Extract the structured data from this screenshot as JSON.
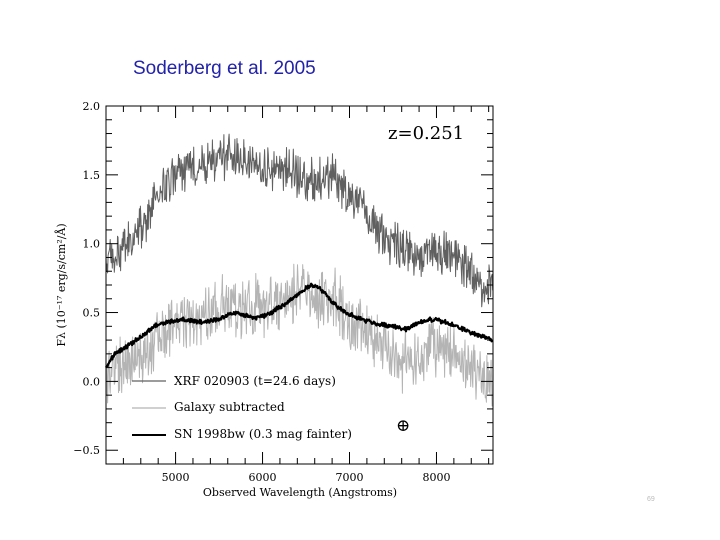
{
  "page": {
    "heading": "Soderberg et al. 2005",
    "slide_number": "69"
  },
  "colors": {
    "xrf": "#606060",
    "galaxy": "#b4b4b4",
    "sn": "#000000",
    "heading": "#2222aa"
  },
  "chart_data": {
    "type": "line",
    "title": "",
    "annotation": "z=0.251",
    "earth_symbol": "⊕",
    "xlabel": "Observed Wavelength (Angstroms)",
    "ylabel": "Fλ (10⁻¹⁷ erg/s/cm²/Å)",
    "xlim": [
      4200,
      8650
    ],
    "ylim": [
      -0.6,
      2.0
    ],
    "xticks": [
      5000,
      6000,
      7000,
      8000
    ],
    "xtick_labels": [
      "5000",
      "6000",
      "7000",
      "8000"
    ],
    "yticks": [
      -0.5,
      0.0,
      0.5,
      1.0,
      1.5,
      2.0
    ],
    "ytick_labels": [
      "−0.5",
      "0.0",
      "0.5",
      "1.0",
      "1.5",
      "2.0"
    ],
    "legend": [
      "XRF 020903 (t=24.6 days)",
      "Galaxy subtracted",
      "SN 1998bw (0.3 mag fainter)"
    ],
    "legend_position": "bottom-left",
    "series": [
      {
        "name": "XRF 020903 (t=24.6 days)",
        "color": "#606060",
        "noise": 0.13,
        "x": [
          4200,
          4400,
          4600,
          4800,
          5000,
          5200,
          5400,
          5600,
          5800,
          6000,
          6200,
          6400,
          6600,
          6800,
          7000,
          7200,
          7400,
          7600,
          7800,
          8000,
          8200,
          8400,
          8650
        ],
        "y": [
          0.85,
          0.95,
          1.1,
          1.35,
          1.5,
          1.55,
          1.6,
          1.65,
          1.6,
          1.55,
          1.55,
          1.5,
          1.45,
          1.5,
          1.35,
          1.2,
          1.05,
          0.95,
          0.9,
          0.95,
          0.9,
          0.8,
          0.65
        ]
      },
      {
        "name": "Galaxy subtracted",
        "color": "#b4b4b4",
        "noise": 0.17,
        "x": [
          4200,
          4400,
          4600,
          4800,
          5000,
          5200,
          5400,
          5600,
          5800,
          6000,
          6200,
          6400,
          6600,
          6800,
          7000,
          7200,
          7400,
          7600,
          7800,
          8000,
          8200,
          8400,
          8650
        ],
        "y": [
          0.05,
          0.1,
          0.2,
          0.35,
          0.45,
          0.45,
          0.5,
          0.55,
          0.55,
          0.55,
          0.55,
          0.65,
          0.6,
          0.6,
          0.45,
          0.35,
          0.25,
          0.15,
          0.15,
          0.25,
          0.2,
          0.1,
          0.0
        ]
      },
      {
        "name": "SN 1998bw (0.3 mag fainter)",
        "color": "#000000",
        "noise": 0.012,
        "x": [
          4200,
          4300,
          4450,
          4600,
          4750,
          4900,
          5100,
          5300,
          5500,
          5650,
          5800,
          5950,
          6100,
          6250,
          6400,
          6550,
          6650,
          6800,
          6950,
          7100,
          7300,
          7500,
          7650,
          7800,
          7950,
          8100,
          8300,
          8500,
          8650
        ],
        "y": [
          0.1,
          0.2,
          0.26,
          0.32,
          0.4,
          0.43,
          0.45,
          0.43,
          0.45,
          0.5,
          0.48,
          0.46,
          0.5,
          0.56,
          0.63,
          0.7,
          0.68,
          0.58,
          0.5,
          0.46,
          0.42,
          0.4,
          0.38,
          0.43,
          0.45,
          0.43,
          0.38,
          0.33,
          0.3
        ]
      }
    ]
  }
}
